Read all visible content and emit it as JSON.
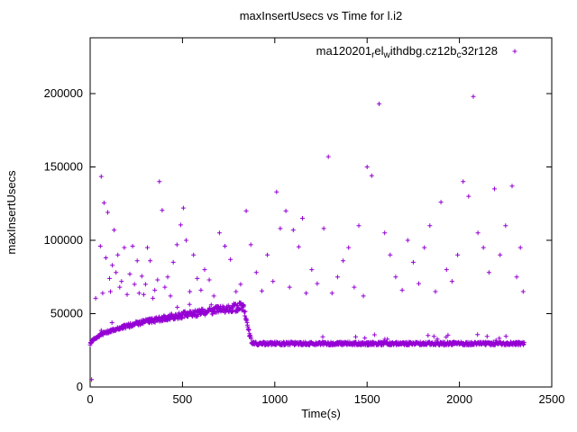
{
  "chart_data": {
    "type": "scatter",
    "title": "maxInsertUsecs vs Time for l.i2",
    "xlabel": "Time(s)",
    "ylabel": "maxInsertUsecs",
    "xlim": [
      0,
      2500
    ],
    "ylim": [
      0,
      238000
    ],
    "xticks": [
      0,
      500,
      1000,
      1500,
      2000,
      2500
    ],
    "yticks": [
      0,
      50000,
      100000,
      150000,
      200000
    ],
    "grid": false,
    "marker": "plus",
    "marker_color": "#9400d3",
    "legend": {
      "position": "top-right",
      "label_text": "ma120201relwithdbg.cz12bc32r128",
      "segments": [
        {
          "text": "ma120201",
          "sub": false
        },
        {
          "text": "r",
          "sub": true
        },
        {
          "text": "el",
          "sub": false
        },
        {
          "text": "w",
          "sub": true
        },
        {
          "text": "ithdbg.cz12b",
          "sub": false
        },
        {
          "text": "c",
          "sub": true
        },
        {
          "text": "32r128",
          "sub": false
        }
      ]
    },
    "dense_band": [
      {
        "phase": "rise",
        "t_start": 0,
        "t_end": 830,
        "y_start": 28500,
        "y_end": 55000,
        "exponent": 0.5,
        "jitter_start": 900,
        "jitter_end": 3000,
        "step": 2
      },
      {
        "phase": "drop",
        "t_start": 830,
        "t_end": 874,
        "y_start": 55000,
        "y_end": 30000,
        "jitter": 2500,
        "step": 2
      },
      {
        "phase": "flat",
        "t_start": 876,
        "t_end": 2350,
        "y": 29600,
        "jitter": 1100,
        "step": 2
      }
    ],
    "outliers": [
      [
        8,
        5000
      ],
      [
        30,
        60500
      ],
      [
        55,
        96000
      ],
      [
        60,
        143500
      ],
      [
        68,
        64000
      ],
      [
        75,
        125500
      ],
      [
        85,
        88000
      ],
      [
        95,
        119000
      ],
      [
        105,
        74000
      ],
      [
        110,
        65000
      ],
      [
        120,
        83000
      ],
      [
        130,
        107000
      ],
      [
        140,
        78000
      ],
      [
        150,
        90000
      ],
      [
        160,
        68000
      ],
      [
        170,
        72000
      ],
      [
        185,
        95000
      ],
      [
        200,
        63000
      ],
      [
        215,
        77000
      ],
      [
        230,
        96000
      ],
      [
        240,
        70000
      ],
      [
        255,
        86000
      ],
      [
        265,
        64000
      ],
      [
        280,
        75500
      ],
      [
        290,
        63000
      ],
      [
        300,
        70000
      ],
      [
        310,
        95000
      ],
      [
        325,
        86000
      ],
      [
        340,
        60500
      ],
      [
        350,
        66000
      ],
      [
        365,
        73000
      ],
      [
        375,
        140000
      ],
      [
        390,
        120500
      ],
      [
        405,
        68000
      ],
      [
        420,
        75000
      ],
      [
        435,
        62000
      ],
      [
        450,
        85000
      ],
      [
        470,
        97000
      ],
      [
        490,
        110500
      ],
      [
        505,
        122000
      ],
      [
        520,
        100000
      ],
      [
        540,
        65000
      ],
      [
        560,
        90000
      ],
      [
        580,
        74000
      ],
      [
        600,
        66000
      ],
      [
        620,
        80000
      ],
      [
        645,
        73000
      ],
      [
        670,
        62000
      ],
      [
        700,
        105000
      ],
      [
        730,
        96000
      ],
      [
        760,
        87000
      ],
      [
        790,
        65000
      ],
      [
        815,
        70000
      ],
      [
        845,
        120000
      ],
      [
        870,
        97000
      ],
      [
        900,
        78000
      ],
      [
        930,
        65500
      ],
      [
        960,
        90000
      ],
      [
        990,
        72000
      ],
      [
        1010,
        133000
      ],
      [
        1030,
        108000
      ],
      [
        1060,
        120000
      ],
      [
        1080,
        68000
      ],
      [
        1100,
        107000
      ],
      [
        1130,
        95500
      ],
      [
        1150,
        115000
      ],
      [
        1170,
        64000
      ],
      [
        1200,
        80000
      ],
      [
        1230,
        70500
      ],
      [
        1265,
        108000
      ],
      [
        1290,
        157000
      ],
      [
        1310,
        64000
      ],
      [
        1340,
        75000
      ],
      [
        1370,
        86000
      ],
      [
        1400,
        95000
      ],
      [
        1430,
        68000
      ],
      [
        1455,
        110000
      ],
      [
        1480,
        62000
      ],
      [
        1500,
        150000
      ],
      [
        1525,
        144000
      ],
      [
        1565,
        193000
      ],
      [
        1595,
        105000
      ],
      [
        1625,
        90000
      ],
      [
        1655,
        75000
      ],
      [
        1690,
        66000
      ],
      [
        1720,
        100000
      ],
      [
        1750,
        85000
      ],
      [
        1780,
        70500
      ],
      [
        1810,
        95000
      ],
      [
        1840,
        110000
      ],
      [
        1870,
        65000
      ],
      [
        1900,
        126000
      ],
      [
        1930,
        80000
      ],
      [
        1960,
        72000
      ],
      [
        1990,
        90000
      ],
      [
        2020,
        140000
      ],
      [
        2050,
        130000
      ],
      [
        2075,
        198000
      ],
      [
        2100,
        105000
      ],
      [
        2130,
        95000
      ],
      [
        2160,
        78000
      ],
      [
        2190,
        135000
      ],
      [
        2220,
        90000
      ],
      [
        2250,
        110000
      ],
      [
        2285,
        137000
      ],
      [
        2310,
        75000
      ],
      [
        2330,
        95000
      ],
      [
        2345,
        65000
      ]
    ]
  }
}
